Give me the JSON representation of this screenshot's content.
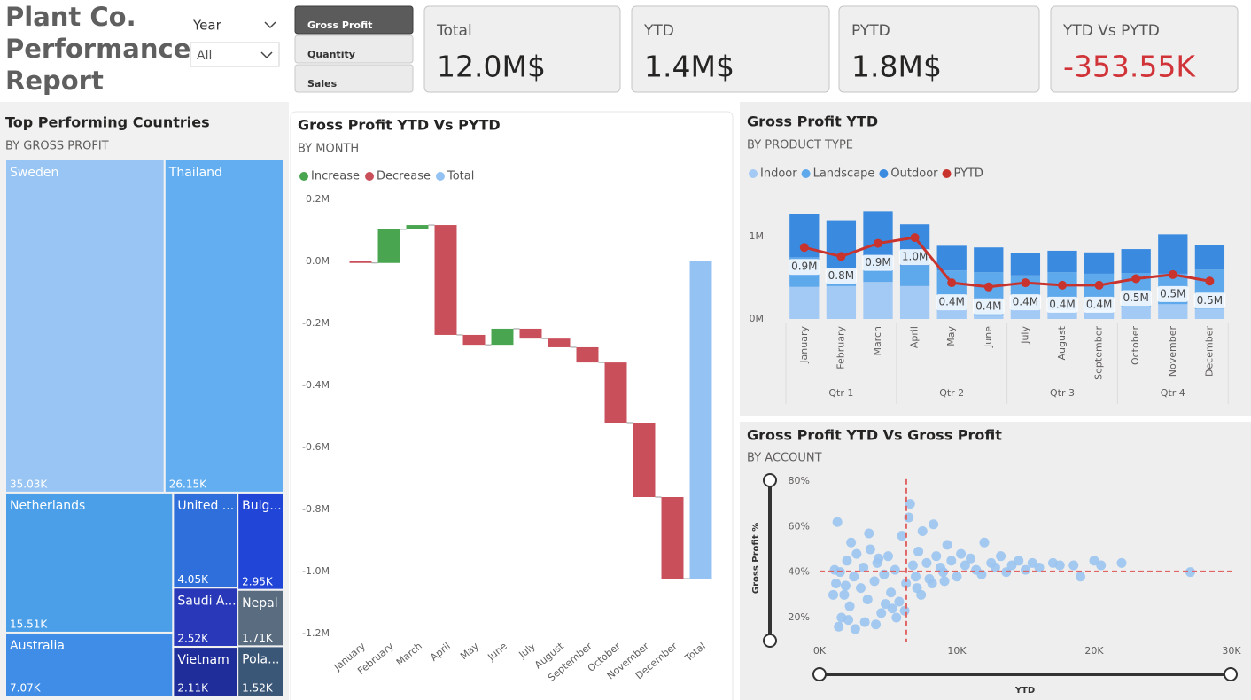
{
  "header": {
    "title_lines": [
      "Plant Co.",
      "Performance",
      "Report"
    ]
  },
  "slicer": {
    "label": "Year",
    "value": "All"
  },
  "buttons": [
    "Gross Profit",
    "Quantity",
    "Sales"
  ],
  "cards": [
    {
      "label": "Total",
      "value": "12.0M$"
    },
    {
      "label": "YTD",
      "value": "1.4M$"
    },
    {
      "label": "PYTD",
      "value": "1.8M$"
    },
    {
      "label": "YTD Vs PYTD",
      "value": "-353.55K",
      "color": "#d13438"
    }
  ],
  "chart_data": [
    {
      "type": "treemap",
      "title": "Top Performing Countries",
      "subtitle": "BY GROSS PROFIT",
      "categories": [
        "Sweden",
        "Thailand",
        "Netherlands",
        "United ...",
        "Bulg...",
        "Saudi A...",
        "Nepal",
        "Vietnam",
        "Pola...",
        "Australia"
      ],
      "values": [
        35030,
        26150,
        15510,
        4050,
        2950,
        2520,
        1710,
        2110,
        1520,
        7070
      ],
      "value_labels": [
        "35.03K",
        "26.15K",
        "15.51K",
        "4.05K",
        "2.95K",
        "2.52K",
        "1.71K",
        "2.11K",
        "1.52K",
        "7.07K"
      ],
      "colors": [
        "#98c5f3",
        "#62aef0",
        "#4a9fe8",
        "#2f6fdb",
        "#2145d6",
        "#2838b8",
        "#5a6c80",
        "#1e2d9a",
        "#3b5778",
        "#3f8de6"
      ]
    },
    {
      "type": "waterfall",
      "title": "Gross Profit YTD Vs PYTD",
      "subtitle": "BY MONTH",
      "legend": [
        {
          "name": "Increase",
          "color": "#4aa550"
        },
        {
          "name": "Decrease",
          "color": "#c9505a"
        },
        {
          "name": "Total",
          "color": "#94c3f3"
        }
      ],
      "categories": [
        "January",
        "February",
        "March",
        "April",
        "May",
        "June",
        "July",
        "August",
        "September",
        "October",
        "November",
        "December"
      ],
      "values": [
        -0.005,
        0.108,
        0.014,
        -0.354,
        -0.032,
        0.052,
        -0.032,
        -0.028,
        -0.049,
        -0.194,
        -0.24,
        -0.263
      ],
      "total": {
        "label": "Total",
        "value": -1.023
      },
      "ylim": [
        -1.22,
        0.23
      ],
      "yticks": [
        {
          "value": 0.2,
          "label": "0.2M"
        },
        {
          "value": 0,
          "label": "0.0M"
        },
        {
          "value": -0.2,
          "label": "-0.2M"
        },
        {
          "value": -0.4,
          "label": "-0.4M"
        },
        {
          "value": -0.6,
          "label": "-0.6M"
        },
        {
          "value": -0.8,
          "label": "-0.8M"
        },
        {
          "value": -1.0,
          "label": "-1.0M"
        },
        {
          "value": -1.2,
          "label": "-1.2M"
        }
      ]
    },
    {
      "type": "combo",
      "title": "Gross Profit YTD",
      "subtitle": "BY PRODUCT TYPE",
      "categories": [
        "January",
        "February",
        "March",
        "April",
        "May",
        "June",
        "July",
        "August",
        "September",
        "October",
        "November",
        "December"
      ],
      "groups": [
        "Qtr 1",
        "Qtr 2",
        "Qtr 3",
        "Qtr 4"
      ],
      "series": [
        {
          "name": "Indoor",
          "kind": "bar",
          "color": "#a3c9f5",
          "values": [
            0.39,
            0.4,
            0.45,
            0.4,
            0.11,
            0.04,
            0.11,
            0.11,
            0.11,
            0.14,
            0.18,
            0.12
          ]
        },
        {
          "name": "Landscape",
          "kind": "bar",
          "color": "#5ea8ec",
          "values": [
            0.36,
            0.22,
            0.15,
            0.25,
            0.48,
            0.53,
            0.42,
            0.46,
            0.44,
            0.42,
            0.37,
            0.48
          ]
        },
        {
          "name": "Outdoor",
          "kind": "bar",
          "color": "#3a8ae0",
          "values": [
            0.53,
            0.58,
            0.71,
            0.5,
            0.3,
            0.3,
            0.27,
            0.26,
            0.26,
            0.29,
            0.48,
            0.3
          ]
        },
        {
          "name": "PYTD",
          "kind": "line",
          "color": "#c8342d",
          "values": [
            0.87,
            0.76,
            0.92,
            0.99,
            0.44,
            0.39,
            0.44,
            0.41,
            0.41,
            0.49,
            0.54,
            0.46
          ],
          "value_labels": [
            "0.9M",
            "0.8M",
            "0.9M",
            "1.0M",
            "0.4M",
            "0.4M",
            "0.4M",
            "0.4M",
            "0.4M",
            "0.5M",
            "0.5M",
            "0.5M"
          ]
        }
      ],
      "ylim": [
        0,
        1.4
      ],
      "yticks": [
        {
          "value": 0,
          "label": "0M"
        },
        {
          "value": 1,
          "label": "1M"
        }
      ]
    },
    {
      "type": "scatter",
      "title": "Gross Profit YTD Vs Gross Profit",
      "subtitle": "BY ACCOUNT",
      "x_label": "YTD",
      "y_label": "Gross Profit %",
      "color": "#9ac4f0",
      "x": [
        1300,
        1500,
        1200,
        1800,
        2000,
        2200,
        2500,
        2700,
        3000,
        3200,
        3500,
        3700,
        4000,
        4200,
        4500,
        4700,
        5000,
        5200,
        5500,
        5800,
        6000,
        6300,
        6500,
        6800,
        7000,
        7200,
        7500,
        7800,
        8000,
        8300,
        8500,
        8800,
        9000,
        9300,
        9600,
        10000,
        10300,
        10600,
        11000,
        11400,
        11800,
        12000,
        12500,
        12800,
        13200,
        13600,
        14000,
        14500,
        15000,
        15500,
        16000,
        17000,
        17500,
        18500,
        19000,
        20000,
        20500,
        22000,
        27000,
        1000,
        1600,
        1400,
        2100,
        2600,
        3300,
        4100,
        4800,
        5300,
        5600,
        6200,
        7100,
        7400,
        8200,
        9100,
        2300,
        3600,
        4300,
        6600,
        1100,
        1900
      ],
      "y": [
        62,
        40,
        35,
        30,
        45,
        25,
        38,
        48,
        33,
        42,
        28,
        50,
        36,
        44,
        22,
        39,
        47,
        31,
        41,
        27,
        56,
        35,
        64,
        43,
        38,
        49,
        58,
        44,
        37,
        61,
        47,
        42,
        40,
        52,
        45,
        38,
        48,
        43,
        46,
        41,
        39,
        53,
        44,
        42,
        47,
        40,
        43,
        45,
        41,
        44,
        42,
        44,
        43,
        43,
        38,
        45,
        43,
        44,
        40,
        30,
        20,
        16,
        19,
        15,
        18,
        17,
        26,
        24,
        20,
        23,
        33,
        30,
        35,
        36,
        53,
        57,
        46,
        70,
        41,
        34
      ],
      "reference_lines": {
        "x": 6320,
        "y": 40.3,
        "color": "#e06666"
      },
      "xlim": [
        0,
        30000
      ],
      "xticks": [
        {
          "value": 0,
          "label": "0K"
        },
        {
          "value": 10000,
          "label": "10K"
        },
        {
          "value": 20000,
          "label": "20K"
        },
        {
          "value": 30000,
          "label": "30K"
        }
      ],
      "ylim": [
        11,
        84
      ],
      "yticks": [
        {
          "value": 20,
          "label": "20%"
        },
        {
          "value": 40,
          "label": "40%"
        },
        {
          "value": 60,
          "label": "60%"
        },
        {
          "value": 80,
          "label": "80%"
        }
      ]
    }
  ]
}
